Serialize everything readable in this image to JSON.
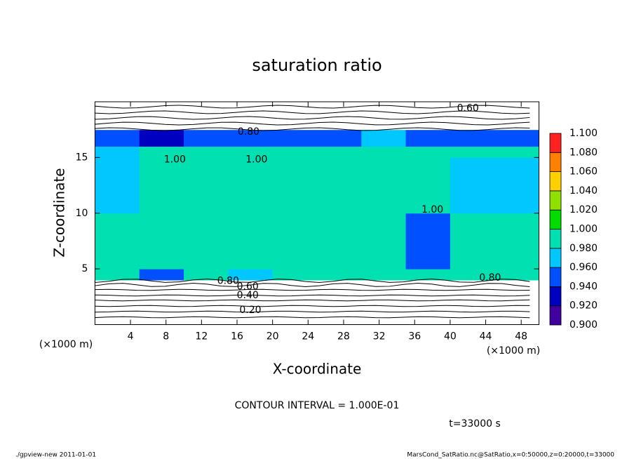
{
  "chart_data": {
    "type": "heatmap",
    "title": "saturation ratio",
    "x_label": "X-coordinate",
    "y_label": "Z-coordinate",
    "x_unit": "(×1000 m)",
    "y_unit": "(×1000 m)",
    "x_edges": [
      0,
      5,
      10,
      15,
      20,
      25,
      30,
      35,
      40,
      45,
      50
    ],
    "z_edges": [
      0,
      4,
      5,
      10,
      15,
      16,
      17.5,
      20
    ],
    "values": [
      [
        0.5,
        0.5,
        0.5,
        0.5,
        0.5,
        0.5,
        0.5,
        0.5,
        0.5,
        0.5
      ],
      [
        0.99,
        0.95,
        0.99,
        0.97,
        0.99,
        0.99,
        0.99,
        0.99,
        0.99,
        0.99
      ],
      [
        0.99,
        0.99,
        0.99,
        0.99,
        0.99,
        0.99,
        0.99,
        0.95,
        0.99,
        0.99
      ],
      [
        0.97,
        0.99,
        0.99,
        0.99,
        0.99,
        0.99,
        0.99,
        0.99,
        0.97,
        0.96
      ],
      [
        0.97,
        0.99,
        0.99,
        0.99,
        0.99,
        0.99,
        0.99,
        0.99,
        0.99,
        0.99
      ],
      [
        0.95,
        0.93,
        0.95,
        0.95,
        0.94,
        0.95,
        0.96,
        0.95,
        0.95,
        0.95
      ],
      [
        0.7,
        0.7,
        0.7,
        0.7,
        0.7,
        0.7,
        0.7,
        0.7,
        0.7,
        0.7
      ]
    ],
    "xlim": [
      0,
      50
    ],
    "ylim": [
      0,
      20
    ],
    "xticks": [
      4,
      8,
      12,
      16,
      20,
      24,
      28,
      32,
      36,
      40,
      44,
      48
    ],
    "yticks": [
      5,
      10,
      15
    ],
    "colorbar": {
      "levels": [
        {
          "value": 0.9,
          "label": "0.900"
        },
        {
          "value": 0.92,
          "label": "0.920"
        },
        {
          "value": 0.94,
          "label": "0.940"
        },
        {
          "value": 0.96,
          "label": "0.960"
        },
        {
          "value": 0.98,
          "label": "0.980"
        },
        {
          "value": 1.0,
          "label": "1.000"
        },
        {
          "value": 1.02,
          "label": "1.020"
        },
        {
          "value": 1.04,
          "label": "1.040"
        },
        {
          "value": 1.06,
          "label": "1.060"
        },
        {
          "value": 1.08,
          "label": "1.080"
        },
        {
          "value": 1.1,
          "label": "1.100"
        }
      ],
      "colors": [
        "#4000a0",
        "#0000c0",
        "#0050ff",
        "#00c8ff",
        "#00e0b0",
        "#00dc00",
        "#90e000",
        "#ffd000",
        "#ff8000",
        "#ff2020",
        "#ff9090"
      ]
    },
    "contour_labels": [
      {
        "text": "0.60",
        "x": 42,
        "z": 19.4
      },
      {
        "text": "0.80",
        "x": 17.3,
        "z": 17.3
      },
      {
        "text": "1.00",
        "x": 9,
        "z": 14.8
      },
      {
        "text": "1.00",
        "x": 18.2,
        "z": 14.8
      },
      {
        "text": "1.00",
        "x": 38,
        "z": 10.3
      },
      {
        "text": "0.80",
        "x": 15,
        "z": 3.9
      },
      {
        "text": "0.60",
        "x": 17.2,
        "z": 3.4
      },
      {
        "text": "0.40",
        "x": 17.2,
        "z": 2.6
      },
      {
        "text": "0.20",
        "x": 17.5,
        "z": 1.3
      },
      {
        "text": "0.80",
        "x": 44.5,
        "z": 4.2
      }
    ],
    "contour_interval": "CONTOUR INTERVAL = 1.000E-01",
    "time": "t=33000 s",
    "footer_left": "./gpview-new   2011-01-01",
    "footer_right": "MarsCond_SatRatio.nc@SatRatio,x=0:50000,z=0:20000,t=33000"
  }
}
